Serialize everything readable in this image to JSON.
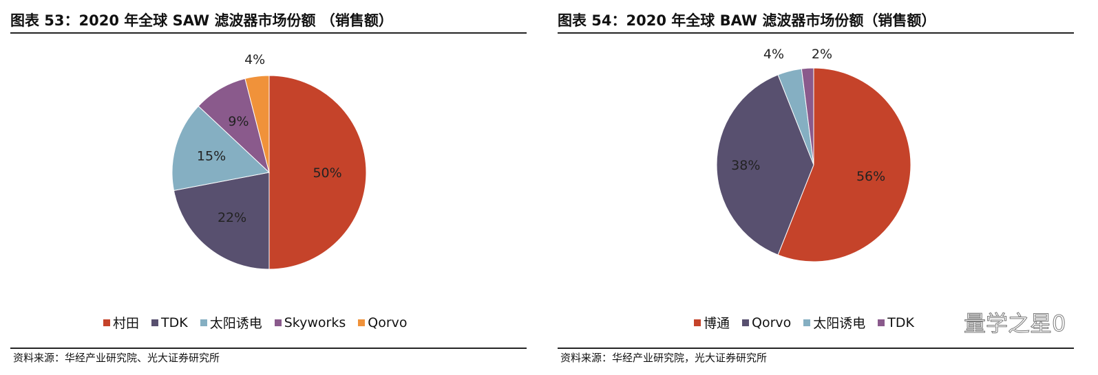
{
  "chart_data": [
    {
      "type": "pie",
      "title": "图表 53：2020 年全球 SAW 滤波器市场份额 （销售额）",
      "categories": [
        "村田",
        "TDK",
        "太阳诱电",
        "Skyworks",
        "Qorvo"
      ],
      "values": [
        50,
        22,
        15,
        9,
        4
      ],
      "labels": [
        "50%",
        "22%",
        "15%",
        "9%",
        "4%"
      ],
      "colors": [
        "#C5432A",
        "#58506F",
        "#85AFC2",
        "#8A5A8C",
        "#F0923A"
      ],
      "legend": "bottom",
      "source": "资料来源：华经产业研究院、光大证券研究所"
    },
    {
      "type": "pie",
      "title": "图表 54：2020 年全球 BAW 滤波器市场份额（销售额）",
      "categories": [
        "博通",
        "Qorvo",
        "太阳诱电",
        "TDK"
      ],
      "values": [
        56,
        38,
        4,
        2
      ],
      "labels": [
        "56%",
        "38%",
        "4%",
        "2%"
      ],
      "colors": [
        "#C5432A",
        "#58506F",
        "#85AFC2",
        "#8A5A8C"
      ],
      "legend": "bottom",
      "source": "资料来源：华经产业研究院，光大证券研究所"
    }
  ],
  "watermark": "量学之星0"
}
